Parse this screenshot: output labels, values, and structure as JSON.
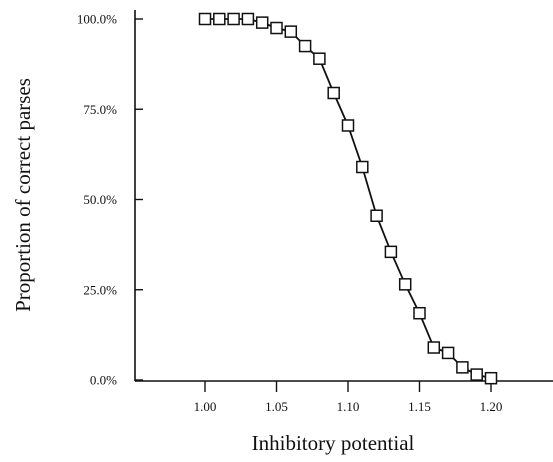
{
  "chart_data": {
    "type": "line",
    "title": "",
    "xlabel": "Inhibitory potential",
    "ylabel": "Proportion of correct parses",
    "xlim": [
      0.93,
      1.245
    ],
    "ylim": [
      0,
      100
    ],
    "x_ticks": [
      1.0,
      1.05,
      1.1,
      1.15,
      1.2
    ],
    "x_tick_labels": [
      "1.00",
      "1.05",
      "1.10",
      "1.15",
      "1.20"
    ],
    "y_ticks": [
      0,
      25,
      50,
      75,
      100
    ],
    "y_tick_labels": [
      "0.0%",
      "25.0%",
      "50.0%",
      "75.0%",
      "100.0%"
    ],
    "grid": false,
    "legend": "none",
    "marker": "square-open",
    "line_color": "#111111",
    "series": [
      {
        "x": [
          1.0,
          1.01,
          1.02,
          1.03,
          1.04,
          1.05,
          1.06,
          1.07,
          1.08,
          1.09,
          1.1,
          1.11,
          1.12,
          1.13,
          1.14,
          1.15,
          1.16,
          1.17,
          1.18,
          1.19,
          1.2
        ],
        "values": [
          100,
          100,
          100,
          100,
          99,
          97.5,
          96.5,
          92.5,
          89,
          79.5,
          70.5,
          59,
          45.5,
          35.5,
          26.5,
          18.5,
          9,
          7.5,
          3.5,
          1.5,
          0.5
        ]
      }
    ]
  }
}
